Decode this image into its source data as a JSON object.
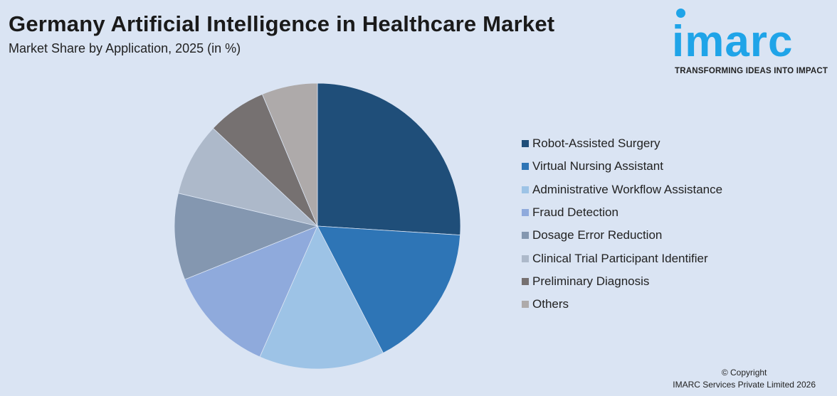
{
  "header": {
    "title": "Germany Artificial Intelligence in Healthcare Market",
    "subtitle": "Market Share by Application, 2025 (in %)"
  },
  "logo": {
    "wordmark": "imarc",
    "tagline": "TRANSFORMING IDEAS INTO IMPACT",
    "color": "#1fa4e8"
  },
  "chart_data": {
    "type": "pie",
    "title": "Germany Artificial Intelligence in Healthcare Market",
    "subtitle": "Market Share by Application, 2025 (in %)",
    "legend_position": "right",
    "slices": [
      {
        "label": "Robot-Assisted Surgery",
        "value": 26.0,
        "color": "#1f4e79"
      },
      {
        "label": "Virtual Nursing Assistant",
        "value": 16.4,
        "color": "#2e75b6"
      },
      {
        "label": "Administrative Workflow Assistance",
        "value": 14.2,
        "color": "#9dc3e6"
      },
      {
        "label": "Fraud Detection",
        "value": 12.3,
        "color": "#8faadc"
      },
      {
        "label": "Dosage Error Reduction",
        "value": 9.8,
        "color": "#8497b0"
      },
      {
        "label": "Clinical Trial Participant Identifier",
        "value": 8.3,
        "color": "#adb9ca"
      },
      {
        "label": "Preliminary Diagnosis",
        "value": 6.7,
        "color": "#767171"
      },
      {
        "label": "Others",
        "value": 6.3,
        "color": "#aeaaaa"
      }
    ]
  },
  "footer": {
    "copyright_line1": "© Copyright",
    "copyright_line2": "IMARC Services Private Limited 2026"
  }
}
